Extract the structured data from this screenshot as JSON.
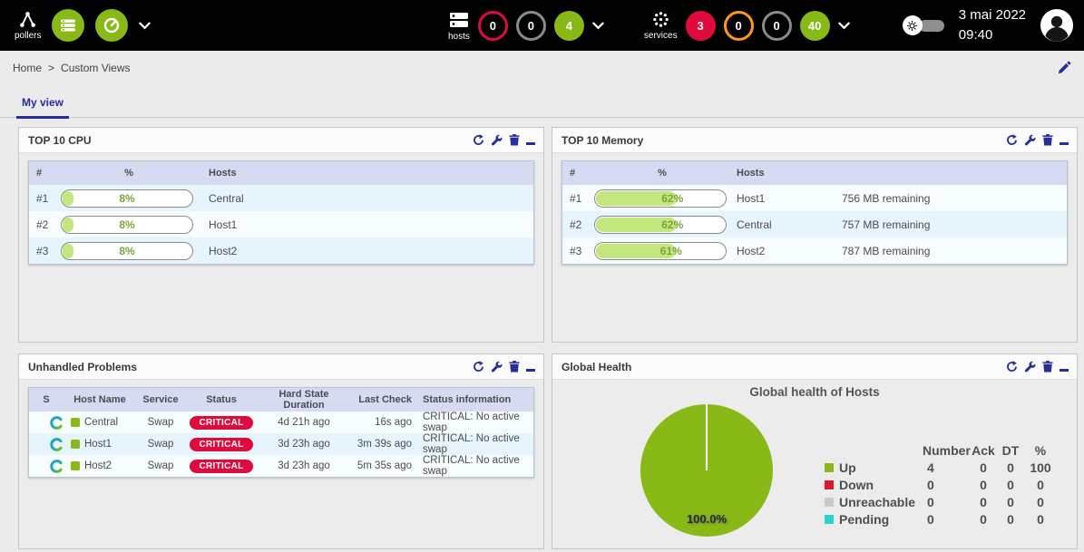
{
  "colors": {
    "accent_navy": "#262e9c",
    "green": "#88b917",
    "red": "#e00b3d",
    "orange": "#ff9913",
    "gray": "#8a8a8a",
    "cyan": "#2bd1d4",
    "bar_fill": "#c3e77d"
  },
  "topbar": {
    "pollers": {
      "label": "pollers"
    },
    "hosts": {
      "label": "hosts",
      "counters": [
        {
          "name": "down",
          "value": "0"
        },
        {
          "name": "unreachable",
          "value": "0"
        },
        {
          "name": "up",
          "value": "4"
        }
      ]
    },
    "services": {
      "label": "services",
      "counters": [
        {
          "name": "critical",
          "value": "3"
        },
        {
          "name": "warning",
          "value": "0"
        },
        {
          "name": "unknown",
          "value": "0"
        },
        {
          "name": "ok",
          "value": "40"
        }
      ]
    },
    "clock": {
      "date": "3 mai 2022",
      "time": "09:40"
    }
  },
  "breadcrumb": {
    "home": "Home",
    "separator": ">",
    "current": "Custom Views"
  },
  "tabs": {
    "my_view": "My view"
  },
  "widgets": {
    "cpu": {
      "title": "TOP 10 CPU",
      "columns": {
        "rank": "#",
        "percent": "%",
        "hosts": "Hosts"
      },
      "rows": [
        {
          "rank": "#1",
          "percent": 8,
          "percent_label": "8%",
          "host": "Central"
        },
        {
          "rank": "#2",
          "percent": 8,
          "percent_label": "8%",
          "host": "Host1"
        },
        {
          "rank": "#3",
          "percent": 8,
          "percent_label": "8%",
          "host": "Host2"
        }
      ]
    },
    "memory": {
      "title": "TOP 10 Memory",
      "columns": {
        "rank": "#",
        "percent": "%",
        "hosts": "Hosts"
      },
      "rows": [
        {
          "rank": "#1",
          "percent": 62,
          "percent_label": "62%",
          "host": "Host1",
          "remaining": "756 MB remaining"
        },
        {
          "rank": "#2",
          "percent": 62,
          "percent_label": "62%",
          "host": "Central",
          "remaining": "757 MB remaining"
        },
        {
          "rank": "#3",
          "percent": 61,
          "percent_label": "61%",
          "host": "Host2",
          "remaining": "787 MB remaining"
        }
      ]
    },
    "problems": {
      "title": "Unhandled Problems",
      "columns": {
        "s": "S",
        "host": "Host Name",
        "service": "Service",
        "status": "Status",
        "duration": "Hard State Duration",
        "last_check": "Last Check",
        "info": "Status information"
      },
      "rows": [
        {
          "host": "Central",
          "service": "Swap",
          "status": "CRITICAL",
          "duration": "4d 21h ago",
          "last_check": "16s ago",
          "info": "CRITICAL: No active swap"
        },
        {
          "host": "Host1",
          "service": "Swap",
          "status": "CRITICAL",
          "duration": "3d 23h ago",
          "last_check": "3m 39s ago",
          "info": "CRITICAL: No active swap"
        },
        {
          "host": "Host2",
          "service": "Swap",
          "status": "CRITICAL",
          "duration": "3d 23h ago",
          "last_check": "5m 35s ago",
          "info": "CRITICAL: No active swap"
        }
      ]
    },
    "health": {
      "title": "Global Health",
      "chart_title": "Global health of Hosts",
      "pie_label": "100.0%",
      "legend_headers": {
        "number": "Number",
        "ack": "Ack",
        "dt": "DT",
        "pct": "%"
      },
      "legend": [
        {
          "label": "Up",
          "color": "#88b917",
          "number": "4",
          "ack": "0",
          "dt": "0",
          "pct": "100"
        },
        {
          "label": "Down",
          "color": "#e0182c",
          "number": "0",
          "ack": "0",
          "dt": "0",
          "pct": "0"
        },
        {
          "label": "Unreachable",
          "color": "#c9c9c9",
          "number": "0",
          "ack": "0",
          "dt": "0",
          "pct": "0"
        },
        {
          "label": "Pending",
          "color": "#2bd1d4",
          "number": "0",
          "ack": "0",
          "dt": "0",
          "pct": "0"
        }
      ],
      "chart_data": {
        "type": "pie",
        "title": "Global health of Hosts",
        "labels": [
          "Up",
          "Down",
          "Unreachable",
          "Pending"
        ],
        "values": [
          100,
          0,
          0,
          0
        ],
        "colors": [
          "#88b917",
          "#e0182c",
          "#c9c9c9",
          "#2bd1d4"
        ]
      }
    }
  }
}
